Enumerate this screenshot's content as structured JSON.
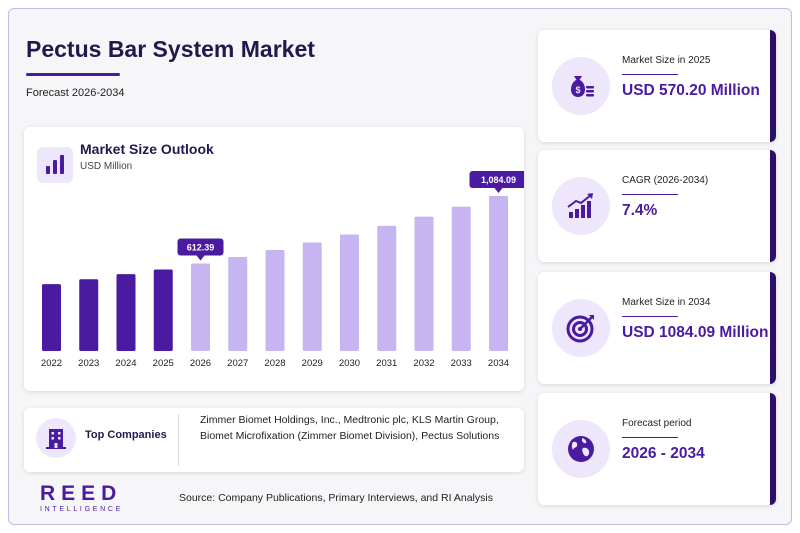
{
  "header": {
    "title": "Pectus Bar System Market",
    "subtitle": "Forecast 2026-2034"
  },
  "chart_card": {
    "title": "Market Size Outlook",
    "unit": "USD Million"
  },
  "chart_data": {
    "type": "bar",
    "categories": [
      "2022",
      "2023",
      "2024",
      "2025",
      "2026",
      "2027",
      "2028",
      "2029",
      "2030",
      "2031",
      "2032",
      "2033",
      "2034"
    ],
    "values": [
      468,
      502,
      538,
      570.2,
      612.39,
      657.7,
      706.4,
      758.6,
      814.8,
      875.1,
      939.9,
      1009.4,
      1084.09
    ],
    "historical_color": "#4a1aa0",
    "forecast_color": "#c6b5f0",
    "callouts": [
      {
        "index": 4,
        "label": "612.39"
      },
      {
        "index": 12,
        "label": "1,084.09"
      }
    ],
    "ylim": [
      0,
      1084.09
    ]
  },
  "companies": {
    "label": "Top Companies",
    "text": "Zimmer Biomet Holdings, Inc., Medtronic plc, KLS Martin Group, Biomet Microfixation (Zimmer Biomet Division), Pectus Solutions"
  },
  "footer": {
    "logo": "REED",
    "logo_sub": "INTELLIGENCE",
    "source": "Source: Company Publications, Primary Interviews, and RI Analysis"
  },
  "stats": [
    {
      "label": "Market Size in 2025",
      "value": "USD 570.20 Million",
      "icon": "money-bag-icon"
    },
    {
      "label": "CAGR (2026-2034)",
      "value": "7.4%",
      "icon": "growth-chart-icon"
    },
    {
      "label": "Market Size in 2034",
      "value": "USD 1084.09 Million",
      "icon": "target-icon"
    },
    {
      "label": "Forecast period",
      "value": "2026 - 2034",
      "icon": "globe-icon"
    }
  ],
  "colors": {
    "accent": "#4a1aa0",
    "title": "#1f1a4d",
    "light_accent": "#eee6fb"
  }
}
